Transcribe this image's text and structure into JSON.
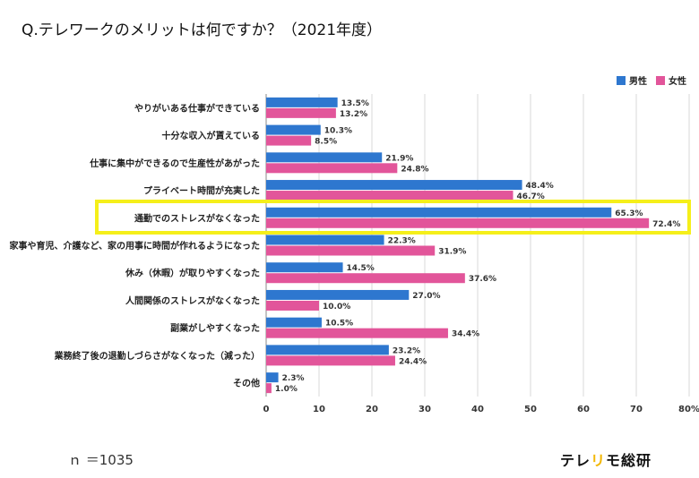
{
  "title": "Q.テレワークのメリットは何ですか？（2021年度）",
  "footnote": "ｎ ＝1035",
  "brand": {
    "part1": "テレ",
    "part2": "リ",
    "part3": "モ総研"
  },
  "colors": {
    "male": "#2e77cf",
    "female": "#e2559a",
    "highlight": "#f5ef1a"
  },
  "chart_data": {
    "type": "bar",
    "orientation": "horizontal",
    "categories": [
      "やりがいある仕事ができている",
      "十分な収入が貰えている",
      "仕事に集中ができるので生産性があがった",
      "プライベート時間が充実した",
      "通勤でのストレスがなくなった",
      "家事や育児、介護など、家の用事に時間が作れるようになった",
      "休み（休暇）が取りやすくなった",
      "人間関係のストレスがなくなった",
      "副業がしやすくなった",
      "業務終了後の退勤しづらさがなくなった（減った）",
      "その他"
    ],
    "series": [
      {
        "name": "男性",
        "values": [
          13.5,
          10.3,
          21.9,
          48.4,
          65.3,
          22.3,
          14.5,
          27.0,
          10.5,
          23.2,
          2.3
        ]
      },
      {
        "name": "女性",
        "values": [
          13.2,
          8.5,
          24.8,
          46.7,
          72.4,
          31.9,
          37.6,
          10.0,
          34.4,
          24.4,
          1.0
        ]
      }
    ],
    "value_labels": [
      [
        "13.5%",
        "10.3%",
        "21.9%",
        "48.4%",
        "65.3%",
        "22.3%",
        "14.5%",
        "27.0%",
        "10.5%",
        "23.2%",
        "2.3%"
      ],
      [
        "13.2%",
        "8.5%",
        "24.8%",
        "46.7%",
        "72.4%",
        "31.9%",
        "37.6%",
        "10.0%",
        "34.4%",
        "24.4%",
        "1.0%"
      ]
    ],
    "xlim": [
      0,
      80
    ],
    "xticks": [
      0,
      10,
      20,
      30,
      40,
      50,
      60,
      70,
      80
    ],
    "xtick_labels": [
      "0",
      "10",
      "20",
      "30",
      "40",
      "50",
      "60",
      "70",
      "80%"
    ],
    "highlighted_category": "通勤でのストレスがなくなった",
    "legend_position": "top-right",
    "grid": true
  }
}
